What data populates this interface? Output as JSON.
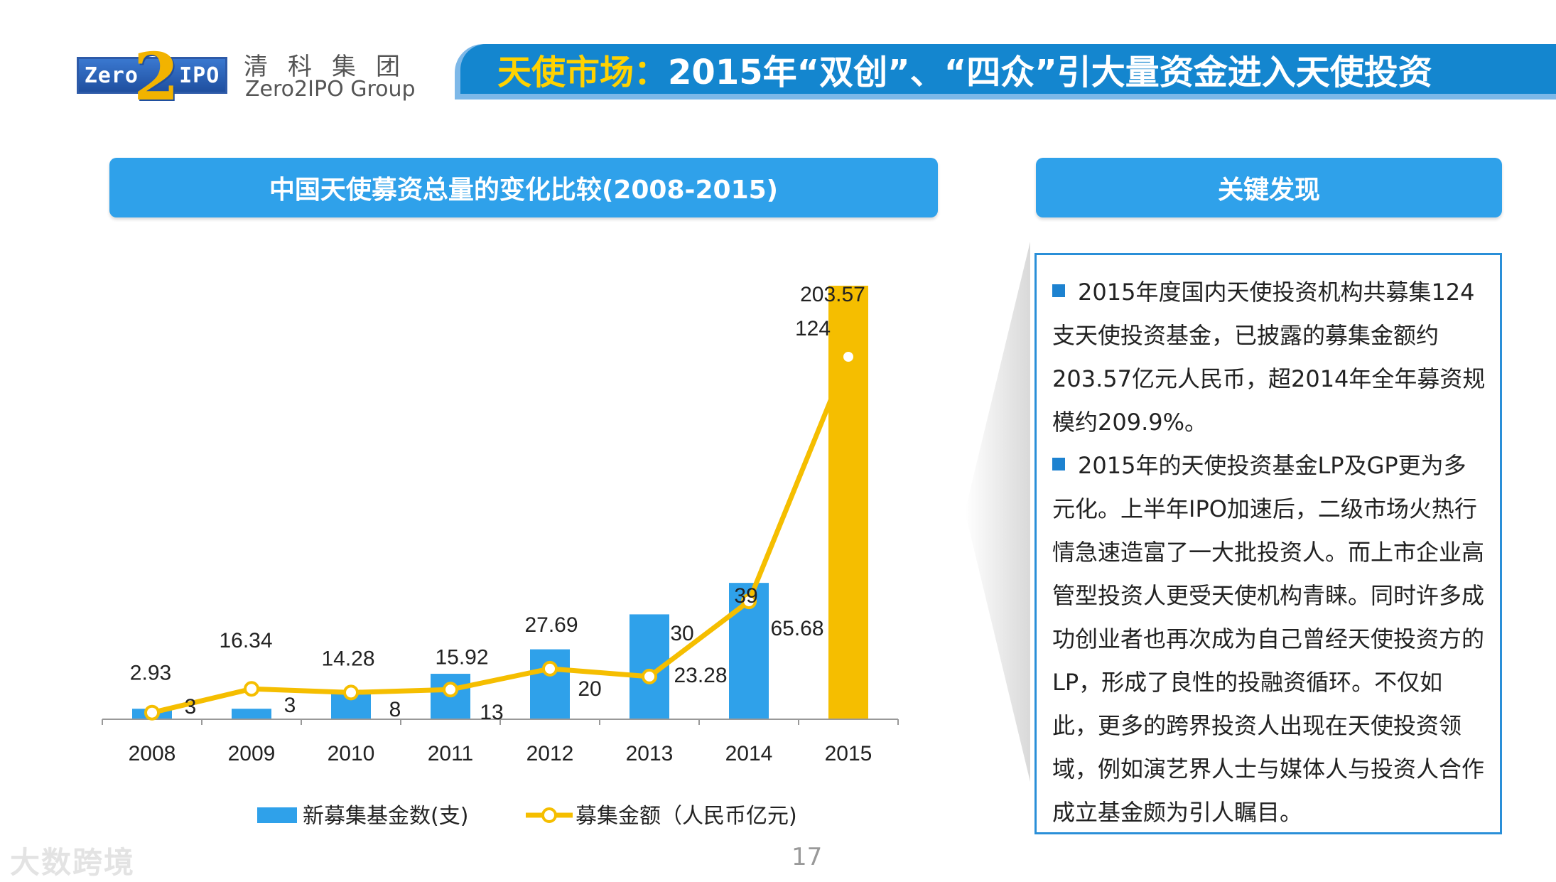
{
  "header": {
    "logo_text": "Zero",
    "logo_text_2": "IPO",
    "logo_two": "2",
    "logo_cn": "清科集团",
    "logo_en": "Zero2IPO Group",
    "title_highlight": "天使市场：",
    "title_rest": "2015年“双创”、“四众”引大量资金进入天使投资"
  },
  "chart_header": "中国天使募资总量的变化比较(2008-2015)",
  "findings_header": "关键发现",
  "chart_data": {
    "type": "bar",
    "title": "中国天使募资总量的变化比较(2008-2015)",
    "categories": [
      "2008",
      "2009",
      "2010",
      "2011",
      "2012",
      "2013",
      "2014",
      "2015"
    ],
    "series": [
      {
        "name": "新募集基金数(支)",
        "type": "bar",
        "color": "#2fa1ea",
        "values": [
          3,
          3,
          8,
          13,
          20,
          30,
          39,
          124
        ]
      },
      {
        "name": "募集金额（人民币亿元)",
        "type": "line",
        "color": "#f5be00",
        "values": [
          2.93,
          16.34,
          14.28,
          15.92,
          27.69,
          23.28,
          65.68,
          203.57
        ]
      }
    ],
    "highlight_bar_color": "#f5be00",
    "legend_position": "bottom",
    "grid": false
  },
  "findings": {
    "para1": "2015年度国内天使投资机构共募集124支天使投资基金，已披露的募集金额约203.57亿元人民币，超2014年全年募资规模约209.9%。",
    "para2": "2015年的天使投资基金LP及GP更为多元化。上半年IPO加速后，二级市场火热行情急速造富了一大批投资人。而上市企业高管型投资人更受天使机构青睐。同时许多成功创业者也再次成为自己曾经天使投资方的LP，形成了良性的投融资循环。不仅如此，更多的跨界投资人出现在天使投资领域，例如演艺界人士与媒体人与投资人合作成立基金颇为引人瞩目。"
  },
  "page_number": "17",
  "watermark": "大数跨境"
}
